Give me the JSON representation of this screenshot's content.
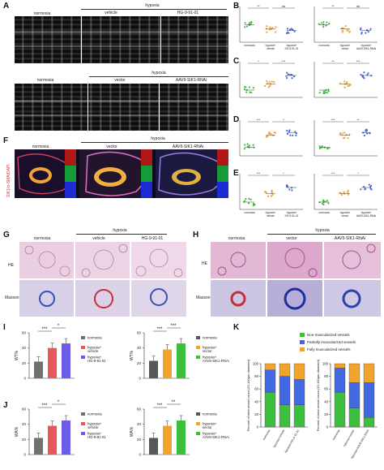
{
  "panels": {
    "A": {
      "letter": "A",
      "top_group": "hypoxia",
      "top_labels": [
        "normoxia",
        "vehicle",
        "HG-9-91-01"
      ],
      "bottom_group": "hypoxia",
      "bottom_labels": [
        "normoxia",
        "vector",
        "AAV9-SIK1-RNAi"
      ]
    },
    "B": {
      "letter": "B",
      "sig_left": [
        "**",
        "ns"
      ],
      "sig_right": [
        "**",
        "ns"
      ]
    },
    "C": {
      "letter": "C",
      "sig_left": [
        "*",
        "***"
      ],
      "sig_right": [
        "**",
        "***"
      ]
    },
    "D": {
      "letter": "D",
      "sig_left": [
        "***",
        "*"
      ],
      "sig_right": [
        "***",
        "**"
      ]
    },
    "E": {
      "letter": "E",
      "sig_left": [
        "***",
        "*"
      ],
      "sig_right": [
        "***",
        "*"
      ]
    },
    "F": {
      "letter": "F",
      "group": "hypoxia",
      "labels": [
        "normoxia",
        "vector",
        "AAV9-SIK1-RNAi"
      ],
      "stain": "SIK1/α-SMA/DAPI"
    },
    "G": {
      "letter": "G",
      "group": "hypoxia",
      "labels": [
        "normoxia",
        "vehicle",
        "HG-9-91-01"
      ],
      "rows": [
        "HE",
        "Masson"
      ]
    },
    "H": {
      "letter": "H",
      "group": "hypoxia",
      "labels": [
        "normoxia",
        "vector",
        "AAV9-SIK1-RNAi"
      ],
      "rows": [
        "HE",
        "Masson"
      ]
    },
    "I": {
      "letter": "I",
      "ylabel": "WT%",
      "sig_left": [
        "***",
        "*"
      ],
      "sig_right": [
        "***",
        "***"
      ]
    },
    "J": {
      "letter": "J",
      "ylabel": "WA%",
      "sig_left": [
        "***",
        "*"
      ],
      "sig_right": [
        "***",
        "**"
      ]
    },
    "K": {
      "letter": "K",
      "ylabel": "Percent of total vessel count (20-100μm diameter)",
      "legend": [
        "Non-muscularized vessels",
        "Partially muscularized vessels",
        "Fully muscularized vessels"
      ]
    }
  },
  "scatter_xlabels_left": [
    "normoxia",
    "hypoxia+ vehicle",
    "hypoxia+ HG-9-91-01"
  ],
  "scatter_xlabels_right": [
    "normoxia",
    "hypoxia+ vector",
    "hypoxia+ AAV9-SIK1-RNAi"
  ],
  "legend_left": [
    "normoxia",
    "hypoxia+ vehicle",
    "hypoxia+ HG-9-91-01"
  ],
  "legend_right": [
    "normoxia",
    "hypoxia+ vector",
    "hypoxia+ AAV9-SIK1-RNAi"
  ],
  "k_xlabels_left": [
    "normoxia",
    "hypoxia+vehicle",
    "hypoxia+HG-9-91-01"
  ],
  "k_xlabels_right": [
    "normoxia",
    "hypoxia+vector",
    "hypoxia+AAV9-SIK1-RNAi"
  ],
  "colors": {
    "green": "#3cbf3c",
    "orange": "#f2a32a",
    "blue": "#4169e1",
    "gray": "#707070",
    "red": "#e8575a",
    "purple": "#6c5ce7",
    "dark": "#575757"
  },
  "chart_data": [
    {
      "type": "bar",
      "panel": "I-left",
      "categories": [
        "normoxia",
        "hypoxia+ vehicle",
        "hypoxia+ HG-9-91-01"
      ],
      "values": [
        22,
        40,
        46
      ],
      "ylim": [
        0,
        60
      ],
      "ticks": [
        0,
        20,
        40,
        60
      ]
    },
    {
      "type": "bar",
      "panel": "I-right",
      "categories": [
        "normoxia",
        "hypoxia+ vector",
        "hypoxia+ AAV9-SIK1-RNAi"
      ],
      "values": [
        23,
        38,
        46
      ],
      "ylim": [
        0,
        60
      ],
      "ticks": [
        0,
        20,
        40,
        60
      ]
    },
    {
      "type": "bar",
      "panel": "J-left",
      "categories": [
        "normoxia",
        "hypoxia+ vehicle",
        "hypoxia+ HG-9-91-01"
      ],
      "values": [
        22,
        38,
        45
      ],
      "ylim": [
        0,
        60
      ],
      "ticks": [
        0,
        20,
        40,
        60
      ]
    },
    {
      "type": "bar",
      "panel": "J-right",
      "categories": [
        "normoxia",
        "hypoxia+ vector",
        "hypoxia+ AAV9-SIK1-RNAi"
      ],
      "values": [
        22,
        38,
        45
      ],
      "ylim": [
        0,
        60
      ],
      "ticks": [
        0,
        20,
        40,
        60
      ]
    },
    {
      "type": "bar",
      "panel": "K-left",
      "categories": [
        "normoxia",
        "hypoxia+vehicle",
        "hypoxia+HG-9-91-01"
      ],
      "ylim": [
        0,
        100
      ],
      "ticks": [
        0,
        20,
        40,
        60,
        80,
        100
      ],
      "series": [
        {
          "name": "Non-muscularized vessels",
          "values": [
            55,
            35,
            35
          ]
        },
        {
          "name": "Partially muscularized vessels",
          "values": [
            35,
            45,
            40
          ]
        },
        {
          "name": "Fully muscularized vessels",
          "values": [
            10,
            20,
            25
          ]
        }
      ]
    },
    {
      "type": "bar",
      "panel": "K-right",
      "categories": [
        "normoxia",
        "hypoxia+vector",
        "hypoxia+AAV9-SIK1-RNAi"
      ],
      "ylim": [
        0,
        100
      ],
      "ticks": [
        0,
        20,
        40,
        60,
        80,
        100
      ],
      "series": [
        {
          "name": "Non-muscularized vessels",
          "values": [
            55,
            30,
            15
          ]
        },
        {
          "name": "Partially muscularized vessels",
          "values": [
            38,
            40,
            55
          ]
        },
        {
          "name": "Fully muscularized vessels",
          "values": [
            7,
            30,
            30
          ]
        }
      ]
    }
  ]
}
